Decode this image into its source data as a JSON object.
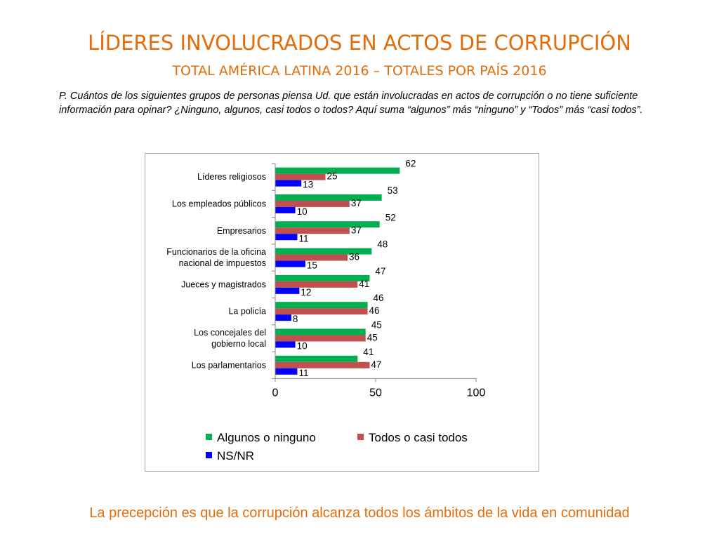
{
  "slide": {
    "title": "LÍDERES INVOLUCRADOS EN ACTOS DE CORRUPCIÓN",
    "subtitle": "TOTAL AMÉRICA LATINA 2016 – TOTALES POR PAÍS 2016",
    "question": "P. Cuántos de los siguientes grupos de personas piensa Ud. que están involucradas en actos de corrupción o no tiene suficiente información para opinar? ¿Ninguno, algunos, casi todos o todos? Aquí suma “algunos” más “ninguno” y “Todos” más “casi todos”.",
    "footer": "La precepción es que la corrupción alcanza todos los ámbitos de la vida en comunidad"
  },
  "chart_data": {
    "type": "bar",
    "orientation": "horizontal",
    "categories": [
      "Líderes religiosos",
      "Los empleados públicos",
      "Empresarios",
      "Funcionarios de la oficina nacional de impuestos",
      "Jueces y magistrados",
      "La policía",
      "Los concejales del gobierno local",
      "Los parlamentarios"
    ],
    "series": [
      {
        "name": "Algunos o ninguno",
        "color": "#00b050",
        "values": [
          62,
          53,
          52,
          48,
          47,
          46,
          45,
          41
        ]
      },
      {
        "name": "Todos o casi todos",
        "color": "#c0504d",
        "values": [
          25,
          37,
          37,
          36,
          41,
          46,
          45,
          47
        ]
      },
      {
        "name": "NS/NR",
        "color": "#0000ff",
        "values": [
          13,
          10,
          11,
          15,
          12,
          8,
          10,
          11
        ]
      }
    ],
    "xlim": [
      0,
      100
    ],
    "xticks": [
      0,
      50,
      100
    ],
    "grid": false,
    "legend_position": "bottom"
  }
}
